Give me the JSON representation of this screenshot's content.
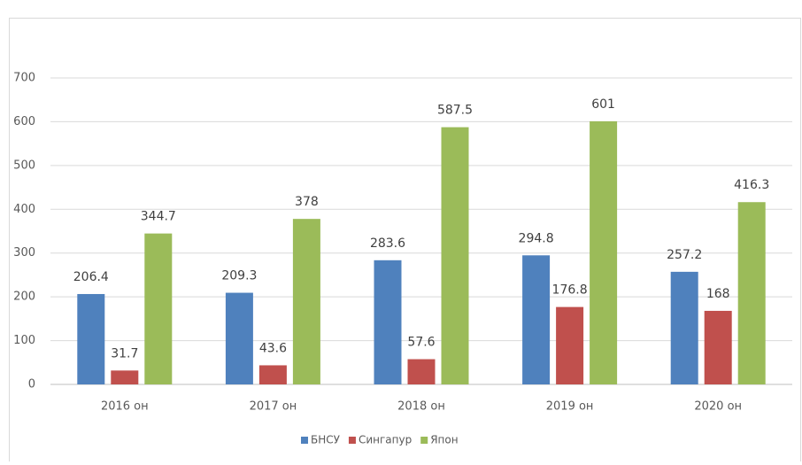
{
  "chart_data": {
    "type": "bar",
    "categories": [
      "2016 он",
      "2017 он",
      "2018 он",
      "2019 он",
      "2020 он"
    ],
    "series": [
      {
        "name": "БНСУ",
        "color": "#4f81bd",
        "values": [
          206.4,
          209.3,
          283.6,
          294.8,
          257.2
        ]
      },
      {
        "name": "Сингапур",
        "color": "#c0504d",
        "values": [
          31.7,
          43.6,
          57.6,
          176.8,
          168
        ]
      },
      {
        "name": "Япон",
        "color": "#9bbb59",
        "values": [
          344.7,
          378,
          587.5,
          601,
          416.3
        ]
      }
    ],
    "ylim": [
      0,
      700
    ],
    "yticks": [
      0,
      100,
      200,
      300,
      400,
      500,
      600,
      700
    ],
    "grid": true,
    "legend": "bottom"
  }
}
